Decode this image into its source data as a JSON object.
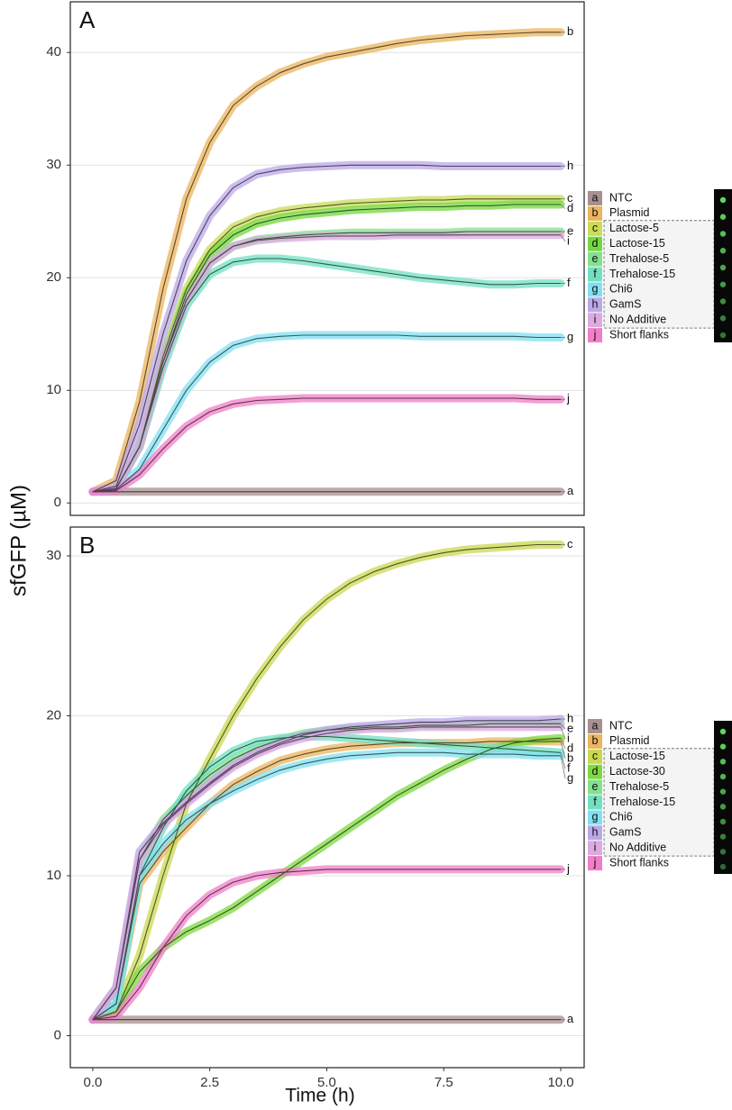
{
  "y_axis_label": "sfGFP (µM)",
  "x_axis_label": "Time (h)",
  "chart_data": [
    {
      "type": "line",
      "panel_label": "A",
      "x": [
        0,
        0.5,
        1,
        1.5,
        2,
        2.5,
        3,
        3.5,
        4,
        4.5,
        5,
        5.5,
        6,
        6.5,
        7,
        7.5,
        8,
        8.5,
        9,
        9.5,
        10
      ],
      "xlim": [
        -0.48,
        10.5
      ],
      "ylim": [
        -1.1,
        44.5
      ],
      "yticks": [
        0,
        10,
        20,
        30,
        40
      ],
      "grid": true,
      "series": [
        {
          "letter": "a",
          "name": "NTC",
          "color": "#a89090",
          "values": [
            1,
            1,
            1,
            1,
            1,
            1,
            1,
            1,
            1,
            1,
            1,
            1,
            1,
            1,
            1,
            1,
            1,
            1,
            1,
            1,
            1
          ]
        },
        {
          "letter": "b",
          "name": "Plasmid",
          "color": "#ebb45e",
          "values": [
            1,
            2,
            9,
            19,
            27,
            32,
            35.3,
            37,
            38.2,
            39,
            39.6,
            40,
            40.4,
            40.8,
            41.1,
            41.3,
            41.5,
            41.6,
            41.7,
            41.8,
            41.8
          ]
        },
        {
          "letter": "c",
          "name": "Lactose-5",
          "color": "#c8dc58",
          "values": [
            1,
            1.3,
            5,
            13,
            19,
            22.5,
            24.5,
            25.4,
            25.9,
            26.2,
            26.4,
            26.6,
            26.7,
            26.8,
            26.9,
            26.9,
            27,
            27,
            27,
            27,
            27
          ]
        },
        {
          "letter": "d",
          "name": "Lactose-15",
          "color": "#72d83e",
          "values": [
            1,
            1.3,
            5,
            12.5,
            18.5,
            22,
            23.8,
            24.8,
            25.3,
            25.6,
            25.8,
            26,
            26.1,
            26.2,
            26.3,
            26.3,
            26.4,
            26.4,
            26.5,
            26.5,
            26.5
          ]
        },
        {
          "letter": "e",
          "name": "Trehalose-5",
          "color": "#84e08e",
          "values": [
            1,
            1.3,
            5,
            12.5,
            18,
            21.3,
            22.8,
            23.4,
            23.6,
            23.8,
            23.9,
            24,
            24,
            24,
            24,
            24,
            24.1,
            24.1,
            24.1,
            24.1,
            24.1
          ]
        },
        {
          "letter": "f",
          "name": "Trehalose-15",
          "color": "#72e0c0",
          "values": [
            1,
            1.3,
            5,
            12,
            17.5,
            20.3,
            21.4,
            21.7,
            21.7,
            21.5,
            21.2,
            20.9,
            20.6,
            20.3,
            20,
            19.8,
            19.6,
            19.4,
            19.4,
            19.5,
            19.5
          ]
        },
        {
          "letter": "g",
          "name": "Chi6",
          "color": "#80e0f0",
          "values": [
            1,
            1.2,
            3,
            6.5,
            10,
            12.5,
            14,
            14.6,
            14.8,
            14.9,
            14.9,
            14.9,
            14.9,
            14.9,
            14.8,
            14.8,
            14.8,
            14.8,
            14.8,
            14.7,
            14.7
          ]
        },
        {
          "letter": "h",
          "name": "GamS",
          "color": "#bca8e8",
          "values": [
            1,
            1.5,
            7,
            15,
            21.5,
            25.5,
            28,
            29.2,
            29.6,
            29.8,
            29.9,
            30,
            30,
            30,
            30,
            29.9,
            29.9,
            29.9,
            29.9,
            29.9,
            29.9
          ]
        },
        {
          "letter": "i",
          "name": "No Additive",
          "color": "#dcaae0",
          "values": [
            1,
            1.3,
            5,
            12.5,
            18,
            21.3,
            22.8,
            23.3,
            23.5,
            23.6,
            23.7,
            23.7,
            23.7,
            23.8,
            23.8,
            23.8,
            23.8,
            23.8,
            23.8,
            23.8,
            23.8
          ]
        },
        {
          "letter": "j",
          "name": "Short flanks",
          "color": "#f07ec8",
          "values": [
            1,
            1.1,
            2.5,
            4.8,
            6.8,
            8.1,
            8.8,
            9.1,
            9.2,
            9.3,
            9.3,
            9.3,
            9.3,
            9.3,
            9.3,
            9.3,
            9.3,
            9.3,
            9.3,
            9.2,
            9.2
          ]
        }
      ]
    },
    {
      "type": "line",
      "panel_label": "B",
      "x": [
        0,
        0.5,
        1,
        1.5,
        2,
        2.5,
        3,
        3.5,
        4,
        4.5,
        5,
        5.5,
        6,
        6.5,
        7,
        7.5,
        8,
        8.5,
        9,
        9.5,
        10
      ],
      "xlim": [
        -0.48,
        10.5
      ],
      "ylim": [
        -2,
        31.8
      ],
      "yticks": [
        0,
        10,
        20,
        30
      ],
      "xticks": [
        {
          "value": 0,
          "label": "0.0"
        },
        2.5,
        {
          "value": 5,
          "label": "5.0"
        },
        7.5,
        {
          "value": 10,
          "label": "10.0"
        }
      ],
      "grid": true,
      "series": [
        {
          "letter": "a",
          "name": "NTC",
          "color": "#a89090",
          "values": [
            1,
            1,
            1,
            1,
            1,
            1,
            1,
            1,
            1,
            1,
            1,
            1,
            1,
            1,
            1,
            1,
            1,
            1,
            1,
            1,
            1
          ]
        },
        {
          "letter": "b",
          "name": "Plasmid",
          "color": "#ebb45e",
          "values": [
            1,
            2,
            9.5,
            11.5,
            13,
            14.5,
            15.7,
            16.5,
            17.2,
            17.6,
            17.9,
            18.1,
            18.2,
            18.3,
            18.3,
            18.3,
            18.3,
            18.4,
            18.4,
            18.4,
            18.4
          ]
        },
        {
          "letter": "c",
          "name": "Lactose-15",
          "color": "#c8d850",
          "values": [
            1,
            1.5,
            5,
            10,
            14.5,
            17.3,
            20,
            22.3,
            24.3,
            26,
            27.3,
            28.3,
            29,
            29.5,
            29.9,
            30.2,
            30.4,
            30.5,
            30.6,
            30.7,
            30.7
          ]
        },
        {
          "letter": "d",
          "name": "Lactose-30",
          "color": "#7ed840",
          "values": [
            1,
            1.5,
            4,
            5.5,
            6.5,
            7.2,
            8,
            9,
            10,
            11,
            12,
            13,
            14,
            15,
            15.8,
            16.6,
            17.3,
            17.9,
            18.3,
            18.5,
            18.6
          ]
        },
        {
          "letter": "e",
          "name": "Trehalose-5",
          "color": "#84e08e",
          "values": [
            1,
            3,
            11,
            13.5,
            15,
            16.3,
            17.3,
            18,
            18.5,
            18.9,
            19.1,
            19.2,
            19.3,
            19.3,
            19.4,
            19.4,
            19.4,
            19.5,
            19.5,
            19.5,
            19.5
          ]
        },
        {
          "letter": "f",
          "name": "Trehalose-15",
          "color": "#72e0c0",
          "values": [
            1,
            2,
            10,
            13,
            15.3,
            16.8,
            17.8,
            18.4,
            18.6,
            18.7,
            18.7,
            18.6,
            18.5,
            18.4,
            18.3,
            18.2,
            18.1,
            18,
            17.9,
            17.8,
            17.7
          ]
        },
        {
          "letter": "g",
          "name": "Chi6",
          "color": "#80e0f0",
          "values": [
            1,
            2,
            10,
            12,
            13.5,
            14.5,
            15.3,
            16,
            16.6,
            17,
            17.3,
            17.5,
            17.6,
            17.7,
            17.7,
            17.7,
            17.6,
            17.6,
            17.6,
            17.5,
            17.5
          ]
        },
        {
          "letter": "h",
          "name": "GamS",
          "color": "#bca8e8",
          "values": [
            1,
            3,
            11.5,
            13.3,
            14.6,
            15.8,
            16.9,
            17.7,
            18.3,
            18.8,
            19.1,
            19.3,
            19.4,
            19.5,
            19.6,
            19.6,
            19.7,
            19.7,
            19.7,
            19.7,
            19.8
          ]
        },
        {
          "letter": "i",
          "name": "No Additive",
          "color": "#dcaae0",
          "values": [
            1,
            3,
            11,
            13.2,
            14.5,
            15.7,
            16.8,
            17.6,
            18.2,
            18.6,
            18.9,
            19.1,
            19.2,
            19.2,
            19.3,
            19.3,
            19.3,
            19.3,
            19.3,
            19.3,
            19.3
          ]
        },
        {
          "letter": "j",
          "name": "Short flanks",
          "color": "#f07ec8",
          "values": [
            1,
            1.2,
            3,
            5.5,
            7.5,
            8.8,
            9.6,
            10,
            10.2,
            10.3,
            10.4,
            10.4,
            10.4,
            10.4,
            10.4,
            10.4,
            10.4,
            10.4,
            10.4,
            10.4,
            10.4
          ]
        }
      ]
    }
  ]
}
